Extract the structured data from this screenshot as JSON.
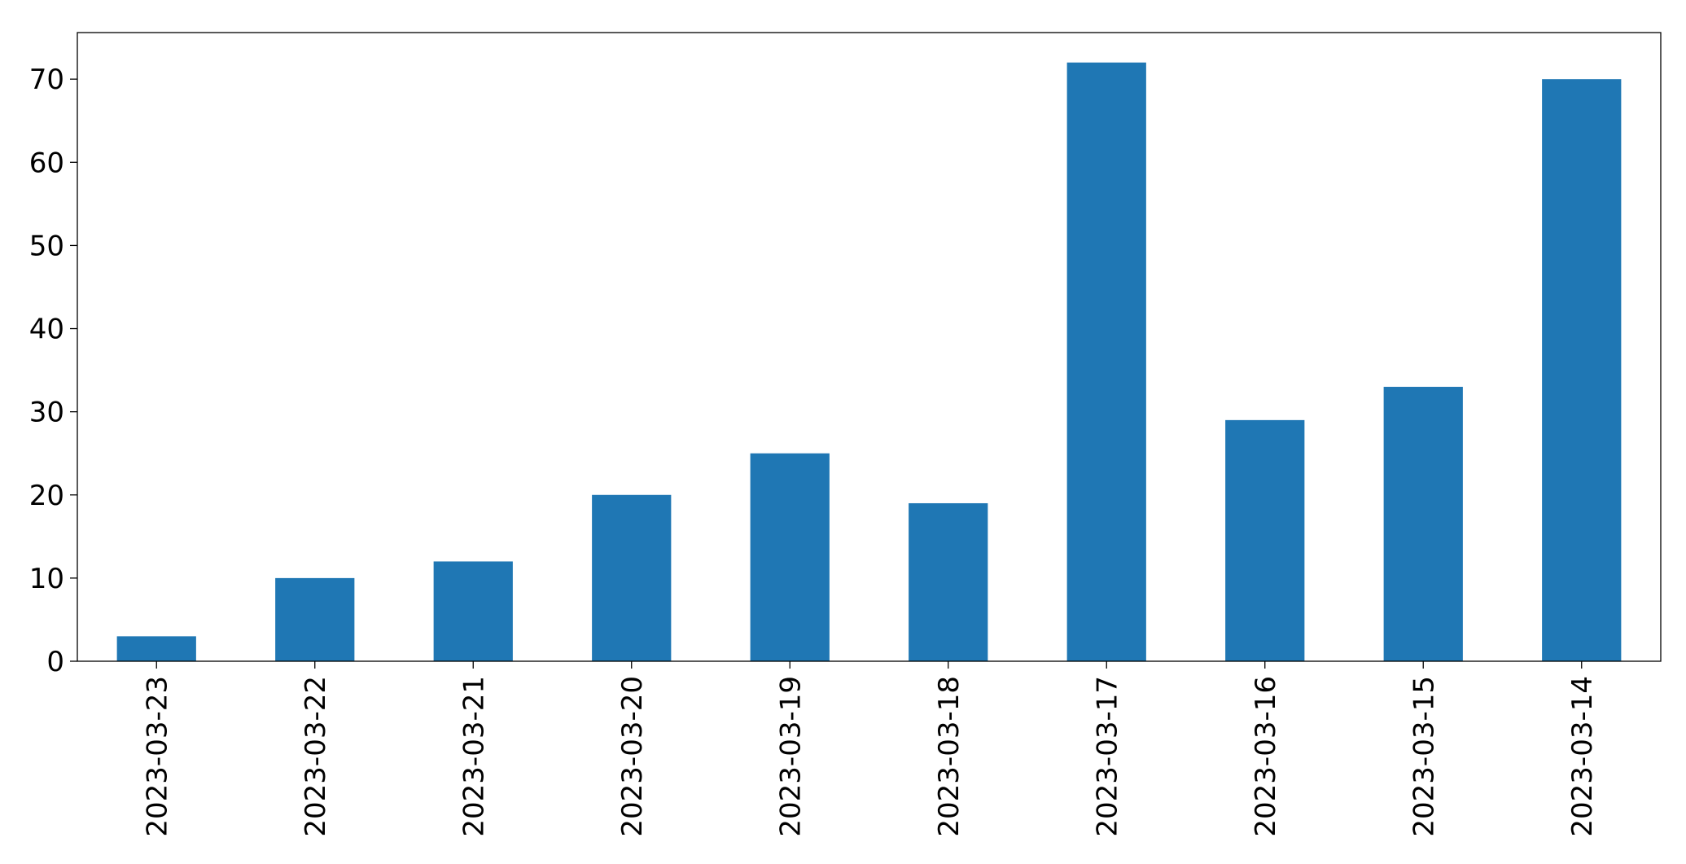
{
  "chart_data": {
    "type": "bar",
    "categories": [
      "2023-03-23",
      "2023-03-22",
      "2023-03-21",
      "2023-03-20",
      "2023-03-19",
      "2023-03-18",
      "2023-03-17",
      "2023-03-16",
      "2023-03-15",
      "2023-03-14"
    ],
    "values": [
      3,
      10,
      12,
      20,
      25,
      19,
      72,
      29,
      33,
      70
    ],
    "title": "",
    "xlabel": "",
    "ylabel": "",
    "ylim": [
      0,
      75.6
    ],
    "yticks": [
      0,
      10,
      20,
      30,
      40,
      50,
      60,
      70
    ],
    "grid": false,
    "bar_color": "#1f77b4"
  }
}
